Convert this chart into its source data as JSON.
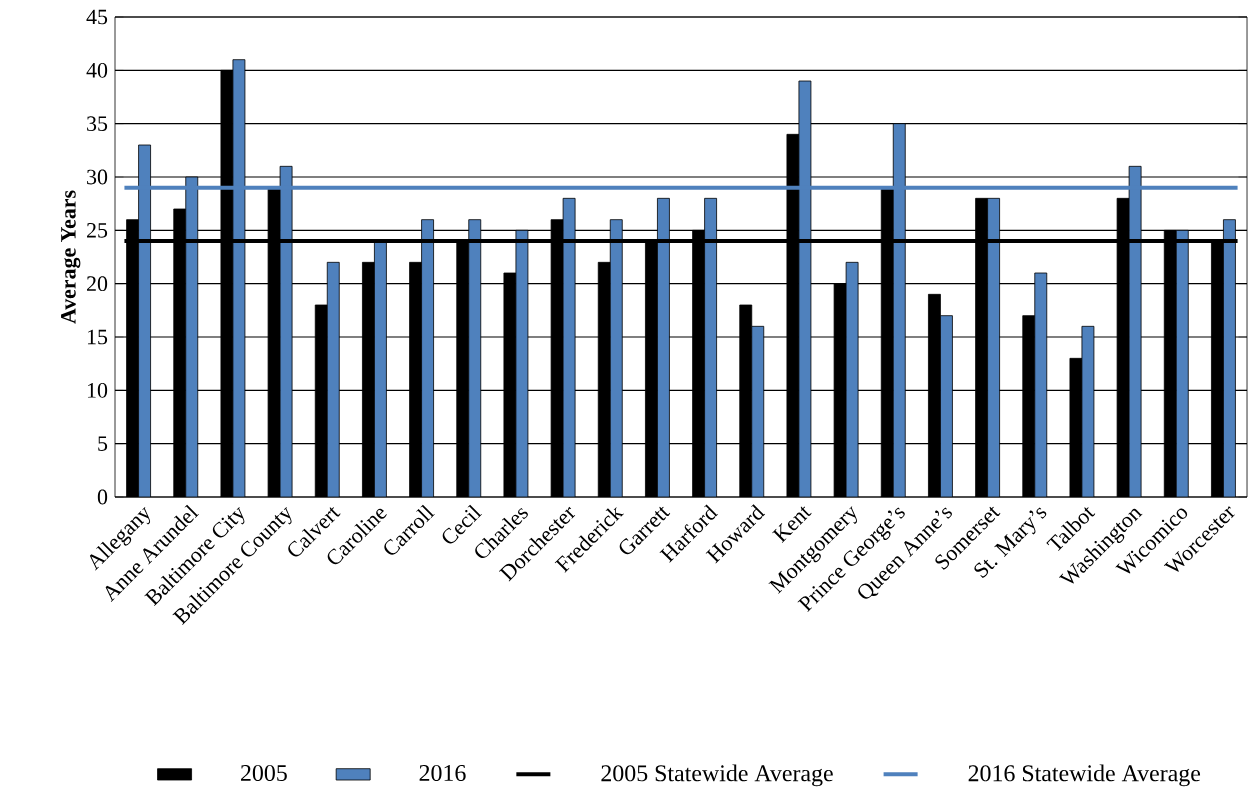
{
  "chart_data": {
    "type": "bar",
    "ylabel": "Average Years",
    "categories": [
      "Allegany",
      "Anne Arundel",
      "Baltimore City",
      "Baltimore County",
      "Calvert",
      "Caroline",
      "Carroll",
      "Cecil",
      "Charles",
      "Dorchester",
      "Frederick",
      "Garrett",
      "Harford",
      "Howard",
      "Kent",
      "Montgomery",
      "Prince George’s",
      "Queen Anne’s",
      "Somerset",
      "St. Mary’s",
      "Talbot",
      "Washington",
      "Wicomico",
      "Worcester"
    ],
    "series": [
      {
        "name": "2005",
        "color": "#000000",
        "values": [
          26,
          27,
          40,
          29,
          18,
          22,
          22,
          24,
          21,
          26,
          22,
          24,
          25,
          18,
          34,
          20,
          29,
          19,
          28,
          17,
          13,
          28,
          25,
          24
        ]
      },
      {
        "name": "2016",
        "color": "#4f81bd",
        "values": [
          33,
          30,
          41,
          31,
          22,
          24,
          26,
          26,
          25,
          28,
          26,
          28,
          28,
          16,
          39,
          22,
          35,
          17,
          28,
          21,
          16,
          31,
          25,
          26
        ]
      }
    ],
    "ref_lines": [
      {
        "axis": "y",
        "value": 24,
        "label": "2005 Statewide Average",
        "color": "#000000"
      },
      {
        "axis": "y",
        "value": 29,
        "label": "2016 Statewide Average",
        "color": "#4f81bd"
      }
    ],
    "ylim": [
      0,
      45
    ],
    "yticks": [
      0,
      5,
      10,
      15,
      20,
      25,
      30,
      35,
      40,
      45
    ],
    "grid": "y",
    "legend": "bottom"
  }
}
